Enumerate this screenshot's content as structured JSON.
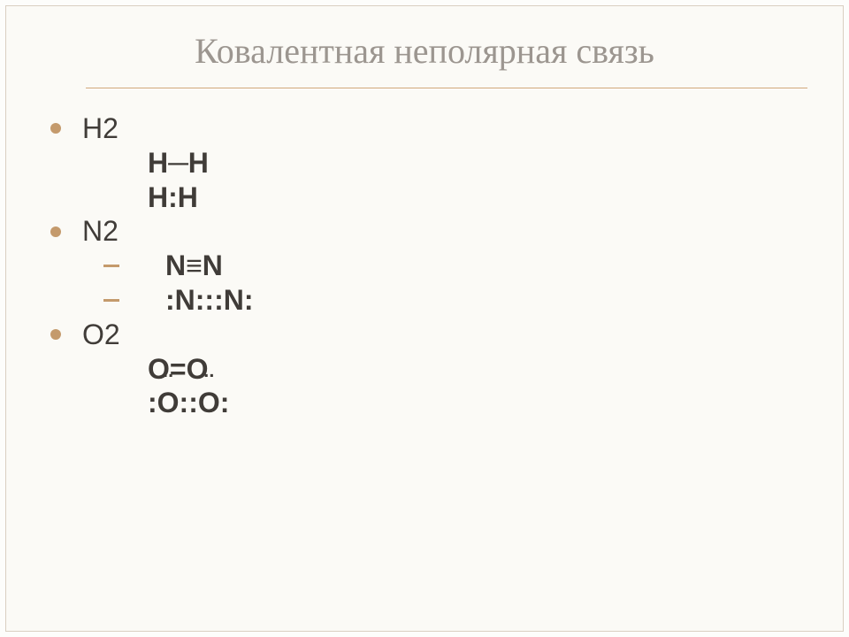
{
  "colors": {
    "background": "#fbfaf6",
    "frame_border": "#d9cfc1",
    "title_text": "#9c9690",
    "underline": "#cfa678",
    "body_text": "#403c38",
    "bullet": "#c49a6c"
  },
  "typography": {
    "title_fontsize_pt": 30,
    "title_font": "Georgia serif",
    "body_fontsize_pt": 24,
    "body_font": "Arial sans-serif",
    "bold_weight": 700
  },
  "title": "Ковалентная неполярная связь",
  "items": [
    {
      "label": "H2",
      "lines": [
        {
          "type": "plain",
          "text": "Н─Н"
        },
        {
          "type": "plain",
          "text": "Н:Н"
        }
      ]
    },
    {
      "label": "N2",
      "lines": [
        {
          "type": "dash",
          "text": "N≡N"
        },
        {
          "type": "dash",
          "text": ":N:::N:"
        }
      ]
    },
    {
      "label": "O2",
      "lines": [
        {
          "type": "plain",
          "text": "О=О"
        },
        {
          "type": "plain",
          "segments": [
            {
              "t": ":"
            },
            {
              "t": "О",
              "dotpair": true
            },
            {
              "t": "::"
            },
            {
              "t": "О",
              "dotpair": true
            },
            {
              "t": ":"
            }
          ]
        }
      ]
    }
  ]
}
